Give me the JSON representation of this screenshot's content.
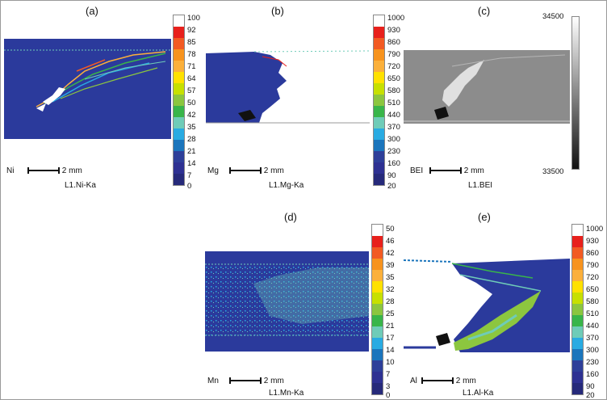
{
  "figure": {
    "panels": [
      {
        "id": "a",
        "label": "(a)",
        "element": "Ni",
        "scale_text": "2 mm",
        "caption": "L1.Ni-Ka",
        "ticks": [
          "100",
          "92",
          "85",
          "78",
          "71",
          "64",
          "57",
          "50",
          "42",
          "35",
          "28",
          "21",
          "14",
          "7",
          "0"
        ]
      },
      {
        "id": "b",
        "label": "(b)",
        "element": "Mg",
        "scale_text": "2 mm",
        "caption": "L1.Mg-Ka",
        "ticks": [
          "1000",
          "930",
          "860",
          "790",
          "720",
          "650",
          "580",
          "510",
          "440",
          "370",
          "300",
          "230",
          "160",
          "90",
          "20"
        ]
      },
      {
        "id": "c",
        "label": "(c)",
        "element": "BEI",
        "scale_text": "2 mm",
        "caption": "L1.BEI",
        "ticks": [
          "34500",
          "33500"
        ]
      },
      {
        "id": "d",
        "label": "(d)",
        "element": "Mn",
        "scale_text": "2 mm",
        "caption": "L1.Mn-Ka",
        "ticks": [
          "50",
          "46",
          "42",
          "39",
          "35",
          "32",
          "28",
          "25",
          "21",
          "17",
          "14",
          "10",
          "7",
          "3",
          "0"
        ]
      },
      {
        "id": "e",
        "label": "(e)",
        "element": "Al",
        "scale_text": "2 mm",
        "caption": "L1.Al-Ka",
        "ticks": [
          "1000",
          "930",
          "860",
          "790",
          "720",
          "650",
          "580",
          "510",
          "440",
          "370",
          "300",
          "230",
          "160",
          "90",
          "20"
        ]
      }
    ],
    "colormap": [
      "#ffffff",
      "#e8201c",
      "#f25a23",
      "#f7931e",
      "#fbb03b",
      "#ffe100",
      "#c7e000",
      "#8cc63f",
      "#39b54a",
      "#6fccb8",
      "#29abe2",
      "#1b75bc",
      "#2e3f99",
      "#2e3192",
      "#262a7a"
    ],
    "colors": {
      "map_blue": "#2b3a9c",
      "map_white": "#ffffff",
      "bei_grey": "#8c8c8c"
    }
  }
}
